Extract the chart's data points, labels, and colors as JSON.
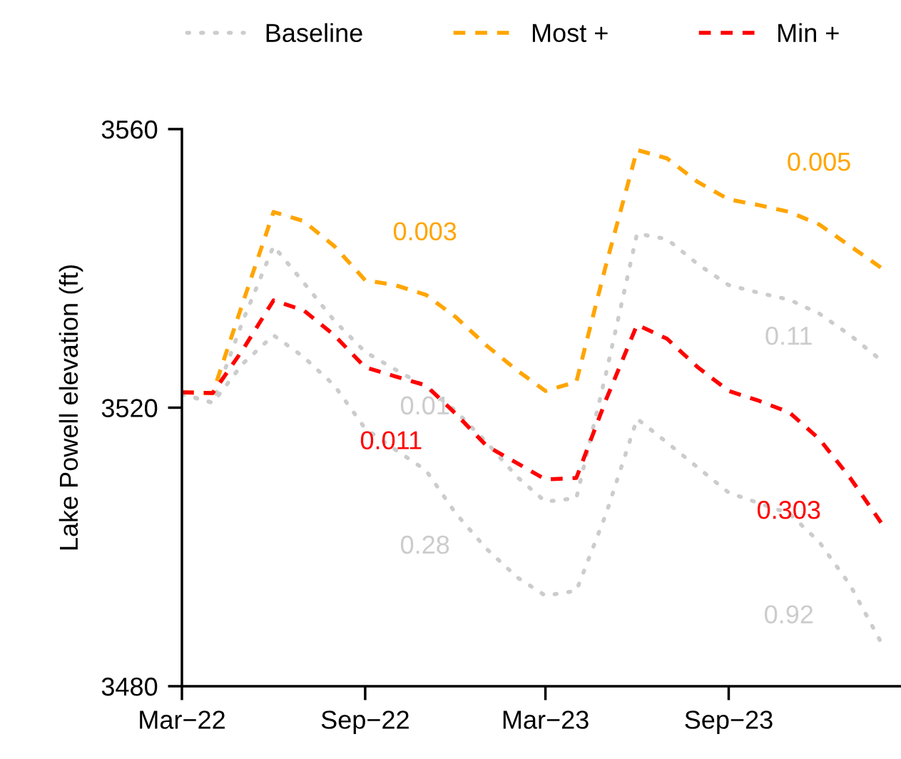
{
  "chart_data": {
    "type": "line",
    "ylabel": "Lake Powell elevation (ft)",
    "x": [
      "2022-03",
      "2022-04",
      "2022-05",
      "2022-06",
      "2022-07",
      "2022-08",
      "2022-09",
      "2022-10",
      "2022-11",
      "2022-12",
      "2023-01",
      "2023-02",
      "2023-03",
      "2023-04",
      "2023-05",
      "2023-06",
      "2023-07",
      "2023-08",
      "2023-09",
      "2023-10",
      "2023-11",
      "2023-12",
      "2024-01",
      "2024-02"
    ],
    "series": [
      {
        "name": "Baseline",
        "color": "#cccccc",
        "line_style": "dotted",
        "values": [
          3521.9,
          3520.7,
          3532.4,
          3543.2,
          3538,
          3532.5,
          3528,
          3525.5,
          3523,
          3519.5,
          3515,
          3510,
          3506.5,
          3507,
          3525,
          3545,
          3544.2,
          3540.6,
          3537.6,
          3536.5,
          3535.5,
          3533.5,
          3530.4,
          3526.8
        ]
      },
      {
        "color": "#cccccc",
        "line_style": "dotted",
        "values": [
          3522,
          3520.7,
          3526.3,
          3530.4,
          3527.3,
          3523.2,
          3517,
          3514,
          3511,
          3504.8,
          3499.7,
          3495.6,
          3493,
          3493.7,
          3504.8,
          3518.4,
          3515,
          3511.4,
          3507.8,
          3506.3,
          3504.8,
          3500.7,
          3494.5,
          3486.3
        ]
      },
      {
        "name": "Most +",
        "color": "#ffa500",
        "line_style": "dashed",
        "values": [
          3522.2,
          3522.1,
          3535,
          3548.1,
          3546.8,
          3543.2,
          3538.3,
          3537.6,
          3536.2,
          3533,
          3528.9,
          3525.3,
          3522.4,
          3523.7,
          3540.6,
          3557,
          3555.8,
          3552.4,
          3549.9,
          3549.1,
          3548.1,
          3546.3,
          3543.2,
          3540.1
        ]
      },
      {
        "name": "Min +",
        "color": "#ff0000",
        "line_style": "dashed",
        "values": [
          3522.2,
          3522.1,
          3528.3,
          3535.4,
          3534,
          3530.4,
          3525.8,
          3524.5,
          3523.2,
          3519.1,
          3514.5,
          3512,
          3509.7,
          3509.9,
          3521.2,
          3531.9,
          3529.9,
          3525.8,
          3522.4,
          3521,
          3519.3,
          3515.5,
          3509.9,
          3503.5
        ]
      }
    ],
    "annotations": [
      "0.003",
      "0.005",
      "0.01",
      "0.011",
      "0.11",
      "0.303",
      "0.28",
      "0.92"
    ],
    "xlim": [
      "2022-03",
      "2024-02-21"
    ],
    "ylim": [
      3480,
      3560
    ],
    "xticks": [
      {
        "value": "2022-03",
        "label": "Mar−22"
      },
      {
        "value": "2022-09",
        "label": "Sep−22"
      },
      {
        "value": "2023-03",
        "label": "Mar−23"
      },
      {
        "value": "2023-09",
        "label": "Sep−23"
      }
    ],
    "yticks": [
      3480,
      3520,
      3560
    ],
    "grid": false,
    "legend": "top"
  }
}
